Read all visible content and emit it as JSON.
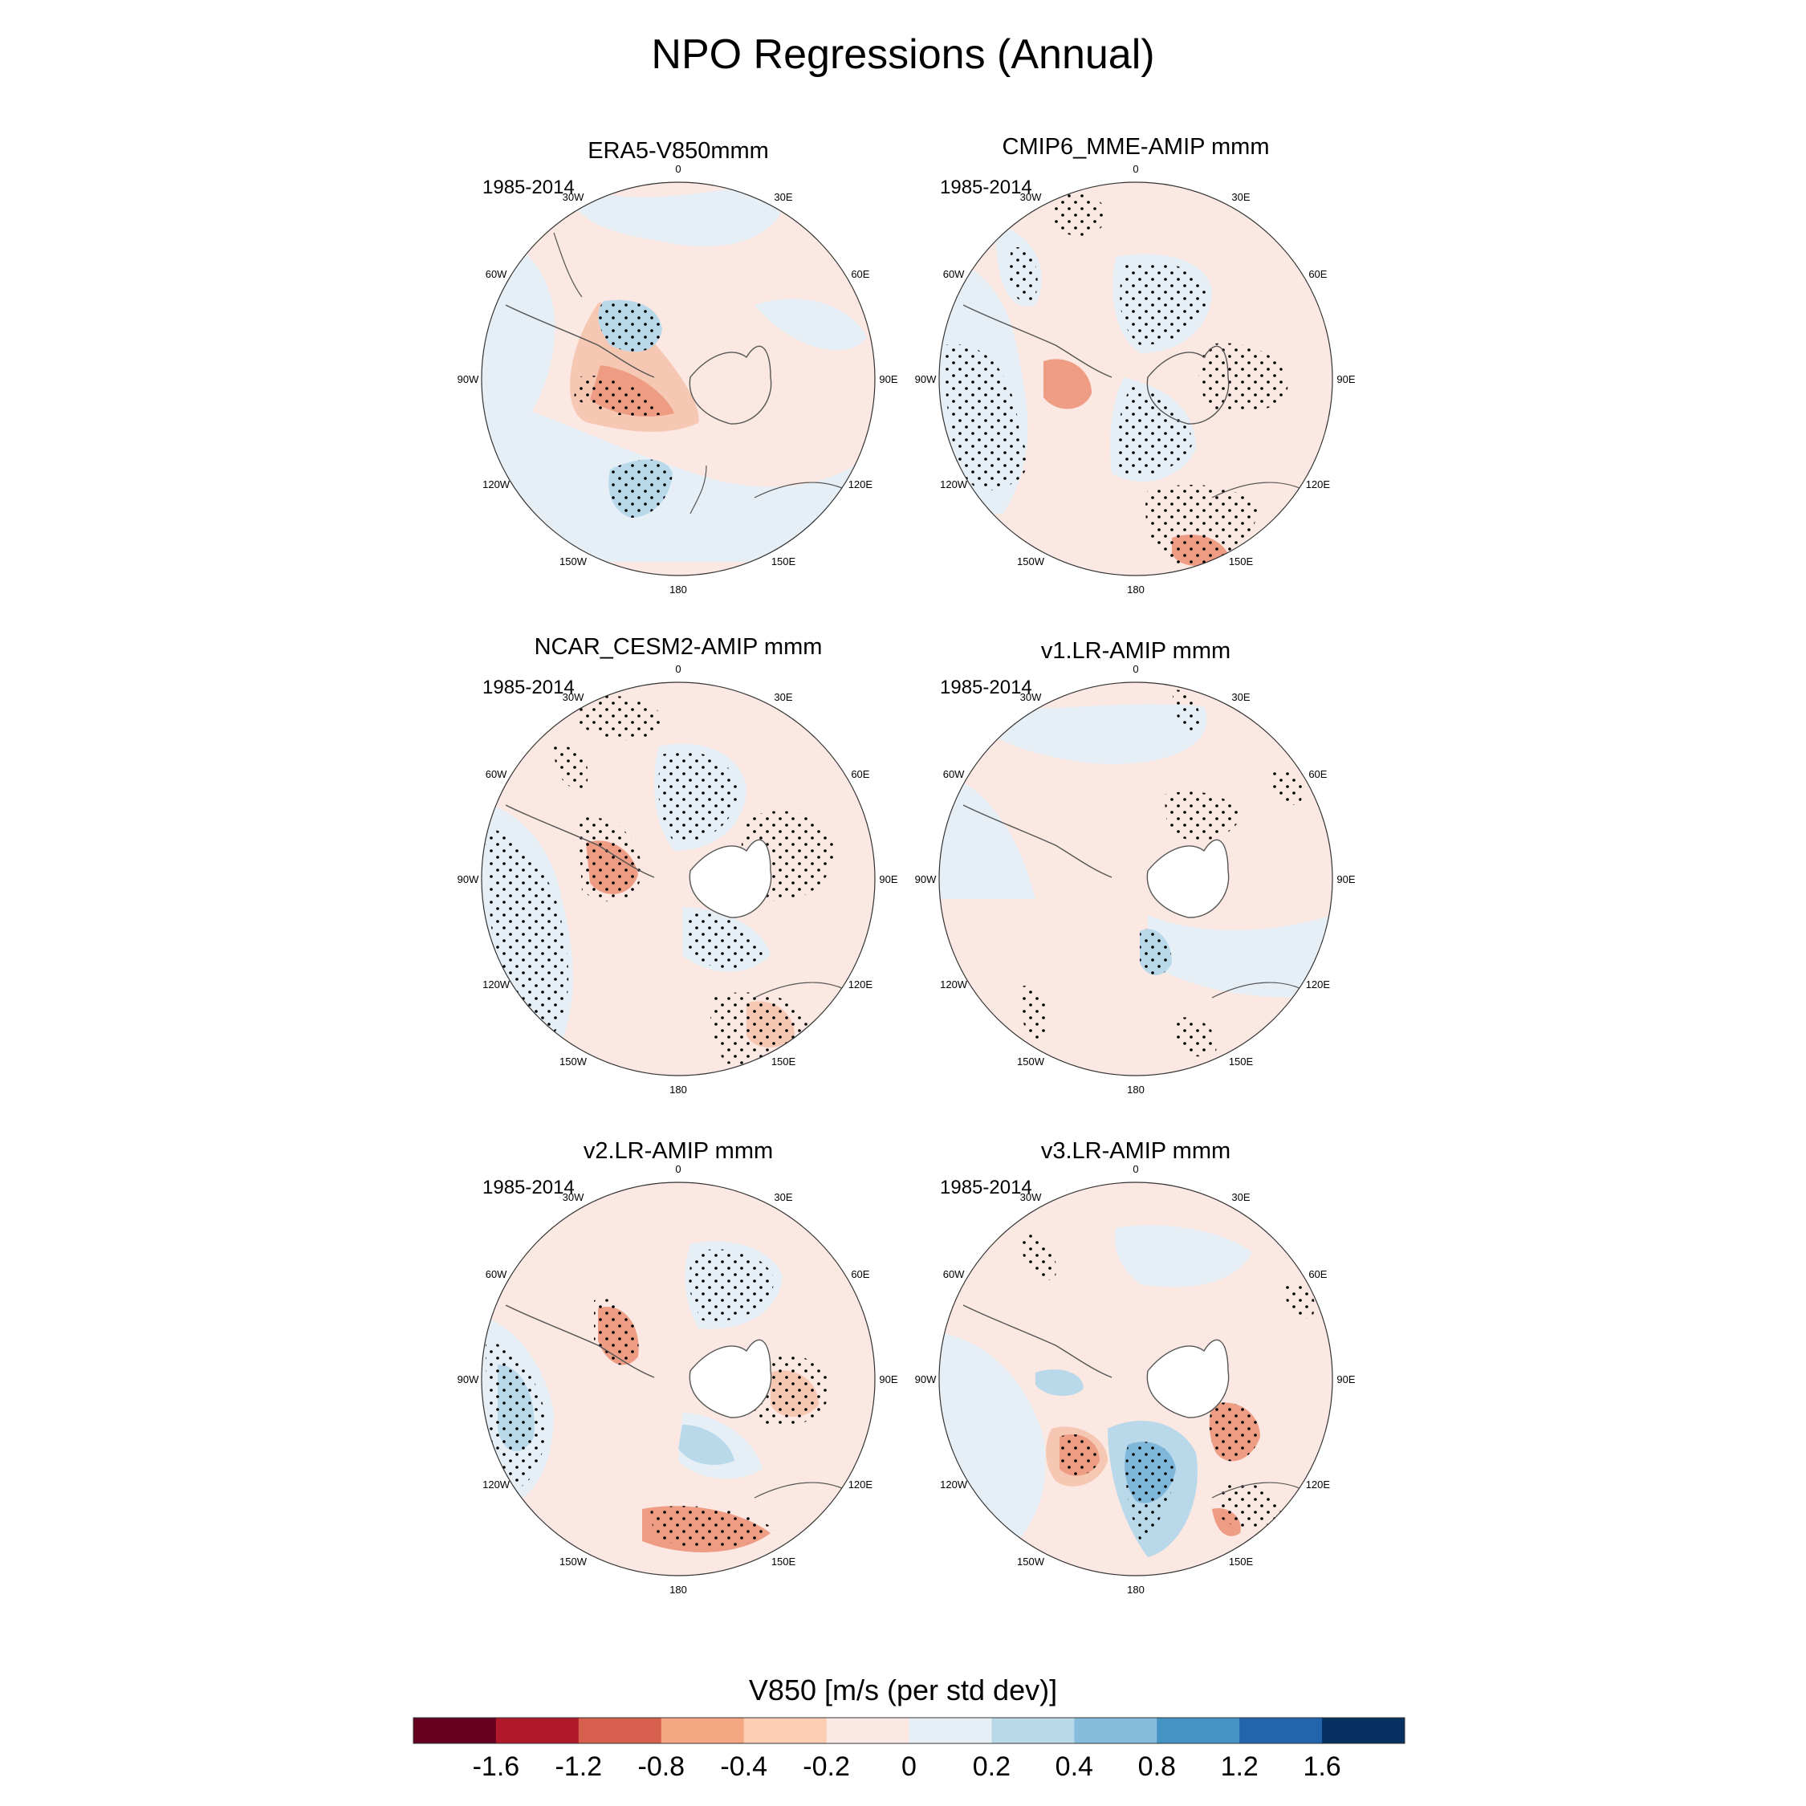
{
  "figure_title": "NPO Regressions (Annual)",
  "panels": [
    {
      "title": "ERA5-V850mmm",
      "period": "1985-2014"
    },
    {
      "title": "CMIP6_MME-AMIP  mmm",
      "period": "1985-2014"
    },
    {
      "title": "NCAR_CESM2-AMIP  mmm",
      "period": "1985-2014"
    },
    {
      "title": "v1.LR-AMIP  mmm",
      "period": "1985-2014"
    },
    {
      "title": "v2.LR-AMIP  mmm",
      "period": "1985-2014"
    },
    {
      "title": "v3.LR-AMIP  mmm",
      "period": "1985-2014"
    }
  ],
  "longitude_labels": [
    "0",
    "30E",
    "60E",
    "90E",
    "120E",
    "150E",
    "180",
    "150W",
    "120W",
    "90W",
    "60W",
    "30W"
  ],
  "colorbar": {
    "title": "V850 [m/s (per std dev)]",
    "labels": [
      "-1.6",
      "-1.2",
      "-0.8",
      "-0.4",
      "-0.2",
      "0",
      "0.2",
      "0.4",
      "0.8",
      "1.2",
      "1.6"
    ],
    "colors": [
      "#67001f",
      "#b2182b",
      "#d6604d",
      "#f4a582",
      "#fdcdb4",
      "#fbe8e2",
      "#e6eff6",
      "#b9d9eb",
      "#86bcdc",
      "#4393c3",
      "#2166ac",
      "#053061"
    ]
  },
  "colors": {
    "positive_weak": "#fbe8e2",
    "positive_mid": "#f6c8b3",
    "positive_strong": "#ee9c83",
    "negative_weak": "#e6eff6",
    "negative_mid": "#b9d9eb",
    "negative_strong": "#7fb7da",
    "land_outline": "#555555",
    "antarctica": "#ffffff"
  }
}
